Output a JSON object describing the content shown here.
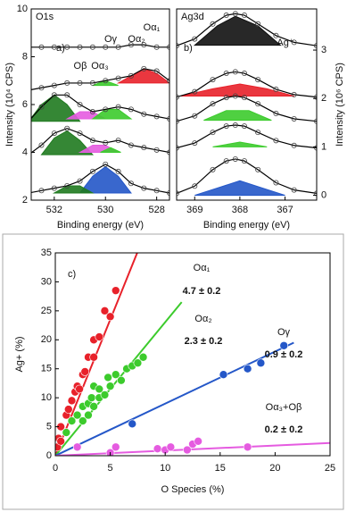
{
  "chart_data": [
    {
      "type": "xps",
      "title": "O1s",
      "panel_label": "a)",
      "xlabel": "Binding energy (eV)",
      "ylabel": "Intensity (10⁴ CPS)",
      "xlim": [
        532.9,
        527.5
      ],
      "xticks": [
        532,
        530,
        528
      ],
      "ylim": [
        2,
        10
      ],
      "yticks": [
        2,
        4,
        6,
        8,
        10
      ],
      "axis_side": "left",
      "x": [
        533,
        532.5,
        532,
        531.5,
        531,
        530.5,
        530,
        529.5,
        529,
        528.5,
        528,
        527.5
      ],
      "spectra": [
        {
          "values": [
            2.3,
            2.4,
            2.5,
            2.6,
            2.8,
            3.2,
            3.5,
            3.2,
            2.7,
            2.5,
            2.4,
            2.3
          ]
        },
        {
          "values": [
            3.9,
            4.3,
            4.8,
            5.0,
            4.8,
            4.5,
            4.4,
            4.5,
            4.3,
            4.2,
            4.1,
            4.0
          ]
        },
        {
          "values": [
            5.3,
            5.9,
            6.4,
            6.4,
            6.0,
            5.7,
            5.8,
            5.9,
            5.8,
            5.6,
            5.5,
            5.4
          ]
        },
        {
          "values": [
            6.6,
            6.7,
            6.8,
            6.9,
            6.9,
            6.9,
            7.0,
            7.1,
            7.2,
            7.5,
            7.4,
            7.0
          ]
        },
        {
          "values": [
            8.4,
            8.4,
            8.4,
            8.4,
            8.4,
            8.4,
            8.4,
            8.4,
            8.5,
            8.5,
            8.4,
            8.4
          ]
        }
      ],
      "components": [
        {
          "color": "#2457c8",
          "x": [
            531,
            530.5,
            530,
            529.5,
            529
          ],
          "values": [
            2.3,
            3.0,
            3.4,
            3.0,
            2.3
          ]
        },
        {
          "color": "#1f7a1f",
          "x": [
            532,
            531.5,
            531,
            530.5
          ],
          "values": [
            2.3,
            2.6,
            2.6,
            2.3
          ]
        },
        {
          "color": "#1f7a1f",
          "x": [
            532.5,
            532,
            531.5,
            531,
            530.5
          ],
          "values": [
            3.9,
            4.6,
            4.9,
            4.5,
            3.9
          ]
        },
        {
          "color": "#e55be0",
          "x": [
            531,
            530.5,
            530,
            529.5
          ],
          "values": [
            4.0,
            4.3,
            4.3,
            4.0
          ]
        },
        {
          "color": "#3ccb2c",
          "x": [
            530.2,
            529.8,
            529.4
          ],
          "values": [
            4.0,
            4.2,
            4.0
          ]
        },
        {
          "color": "#1f7a1f",
          "x": [
            533,
            532.5,
            532,
            531.5,
            531
          ],
          "values": [
            5.3,
            6.0,
            6.4,
            6.0,
            5.3
          ]
        },
        {
          "color": "#e55be0",
          "x": [
            531.5,
            531,
            530.5,
            530
          ],
          "values": [
            5.4,
            5.7,
            5.7,
            5.4
          ]
        },
        {
          "color": "#3ccb2c",
          "x": [
            530.5,
            530,
            529.5,
            529
          ],
          "values": [
            5.4,
            5.8,
            5.8,
            5.4
          ]
        },
        {
          "color": "#e8212a",
          "x": [
            529.5,
            529,
            528.5,
            528,
            527.5
          ],
          "values": [
            6.9,
            7.2,
            7.5,
            7.3,
            6.9
          ]
        },
        {
          "color": "#3ccb2c",
          "x": [
            530.5,
            530,
            529.5
          ],
          "values": [
            6.8,
            7.0,
            6.8
          ]
        }
      ],
      "annotations": [
        {
          "text": "Oα₁",
          "color": "#e8212a"
        },
        {
          "text": "Oα₂",
          "color": "#3ccb2c"
        },
        {
          "text": "Oα₃",
          "color": "#e55be0"
        },
        {
          "text": "Oβ",
          "color": "#3ccb2c"
        },
        {
          "text": "Oγ",
          "color": "#2457c8"
        }
      ]
    },
    {
      "type": "xps",
      "title": "Ag3d",
      "panel_label": "b)",
      "xlabel": "Binding energy (eV)",
      "ylabel": "Intensity (10⁶ CPS)",
      "xlim": [
        369.4,
        366.3
      ],
      "xticks": [
        369,
        368,
        367
      ],
      "ylim": [
        -0.1,
        3.85
      ],
      "yticks": [
        0,
        1,
        2,
        3
      ],
      "axis_side": "right",
      "x": [
        369.4,
        369,
        368.6,
        368.3,
        368.1,
        367.9,
        367.6,
        367.2,
        366.8,
        366.3
      ],
      "spectra": [
        {
          "values": [
            0.04,
            0.19,
            0.53,
            0.71,
            0.75,
            0.71,
            0.53,
            0.26,
            0.11,
            0.04
          ]
        },
        {
          "values": [
            0.98,
            1.08,
            1.3,
            1.43,
            1.45,
            1.43,
            1.3,
            1.13,
            1.03,
            0.98
          ]
        },
        {
          "values": [
            1.53,
            1.64,
            1.89,
            2.02,
            2.05,
            2.02,
            1.89,
            1.69,
            1.58,
            1.53
          ]
        },
        {
          "values": [
            2.03,
            2.14,
            2.39,
            2.52,
            2.55,
            2.52,
            2.39,
            2.19,
            2.08,
            2.03
          ]
        },
        {
          "values": [
            3.09,
            3.23,
            3.54,
            3.72,
            3.75,
            3.72,
            3.54,
            3.3,
            3.16,
            3.09
          ]
        }
      ],
      "components": [
        {
          "color": "#2457c8",
          "x": [
            369,
            368.5,
            368,
            367.5,
            367
          ],
          "values": [
            0.0,
            0.15,
            0.3,
            0.15,
            0.0
          ]
        },
        {
          "color": "#3ccb2c",
          "x": [
            368.6,
            368,
            367.4
          ],
          "values": [
            1.0,
            1.1,
            1.0
          ]
        },
        {
          "color": "#3ccb2c",
          "x": [
            368.8,
            368.3,
            367.8,
            367.3
          ],
          "values": [
            1.55,
            1.75,
            1.75,
            1.55
          ]
        },
        {
          "color": "#e8212a",
          "x": [
            369.3,
            368.6,
            368,
            367.4,
            366.8
          ],
          "values": [
            2.05,
            2.2,
            2.3,
            2.2,
            2.05
          ]
        },
        {
          "color": "#111111",
          "x": [
            369,
            368.5,
            368.1,
            367.6,
            367.1
          ],
          "values": [
            3.1,
            3.5,
            3.7,
            3.5,
            3.1
          ]
        }
      ],
      "annotations": [
        {
          "text": "Ag⁺",
          "color": "#000000"
        }
      ]
    },
    {
      "type": "scatter",
      "panel_label": "c)",
      "xlabel": "O Species (%)",
      "ylabel": "Ag+ (%)",
      "xlim": [
        0,
        25
      ],
      "xticks": [
        0,
        5,
        10,
        15,
        20,
        25
      ],
      "ylim": [
        0,
        35
      ],
      "yticks": [
        0,
        5,
        10,
        15,
        20,
        25,
        30,
        35
      ],
      "axis_side": "left",
      "series": [
        {
          "name": "Oα₁",
          "annotation": "4.7 ± 0.2",
          "color": "#e8212a",
          "x": [
            0.2,
            0.3,
            0.5,
            0.5,
            1,
            1.2,
            1.5,
            1.8,
            2,
            2.2,
            2.5,
            2.7,
            3,
            3.5,
            3.5,
            4,
            4.5,
            5,
            5.5
          ],
          "values": [
            1.5,
            3,
            2.5,
            5,
            7,
            8,
            9.5,
            11,
            12,
            11.5,
            14,
            14.5,
            17,
            17,
            20,
            20.5,
            25,
            24,
            28.5
          ],
          "fit": {
            "x": [
              0,
              7.45
            ],
            "values": [
              0,
              35
            ]
          }
        },
        {
          "name": "Oα₂",
          "annotation": "2.3 ± 0.2",
          "color": "#3ccb2c",
          "x": [
            1,
            1.5,
            2,
            2.5,
            2.5,
            3,
            3,
            3.3,
            3.5,
            3.5,
            4,
            4,
            4.5,
            4.8,
            5,
            5.5,
            6,
            6.5,
            7,
            7.5,
            8
          ],
          "values": [
            4,
            6,
            7,
            8.5,
            6,
            9,
            7,
            10,
            8.5,
            12,
            10,
            11.5,
            10.5,
            13.5,
            12,
            14,
            13,
            15,
            15.5,
            16,
            17
          ],
          "fit": {
            "x": [
              0,
              11.5
            ],
            "values": [
              0,
              26.5
            ]
          }
        },
        {
          "name": "Oγ",
          "annotation": "0.9 ± 0.2",
          "color": "#2457c8",
          "x": [
            7,
            15.3,
            17.5,
            18.7,
            20.8
          ],
          "values": [
            5.5,
            14,
            15,
            16,
            19
          ],
          "fit": {
            "x": [
              0,
              21.7
            ],
            "values": [
              0,
              19.5
            ]
          }
        },
        {
          "name": "Oα₃+Oβ",
          "annotation": "0.2 ± 0.2",
          "color": "#e55be0",
          "x": [
            2,
            5,
            5.5,
            9.3,
            10,
            10.5,
            12,
            12.5,
            13,
            17.5
          ],
          "values": [
            1.5,
            0.5,
            1.5,
            1.2,
            1,
            1.5,
            1,
            2,
            2.5,
            1.5
          ],
          "fit": {
            "x": [
              0,
              25
            ],
            "values": [
              0,
              2.2
            ]
          }
        }
      ]
    }
  ]
}
